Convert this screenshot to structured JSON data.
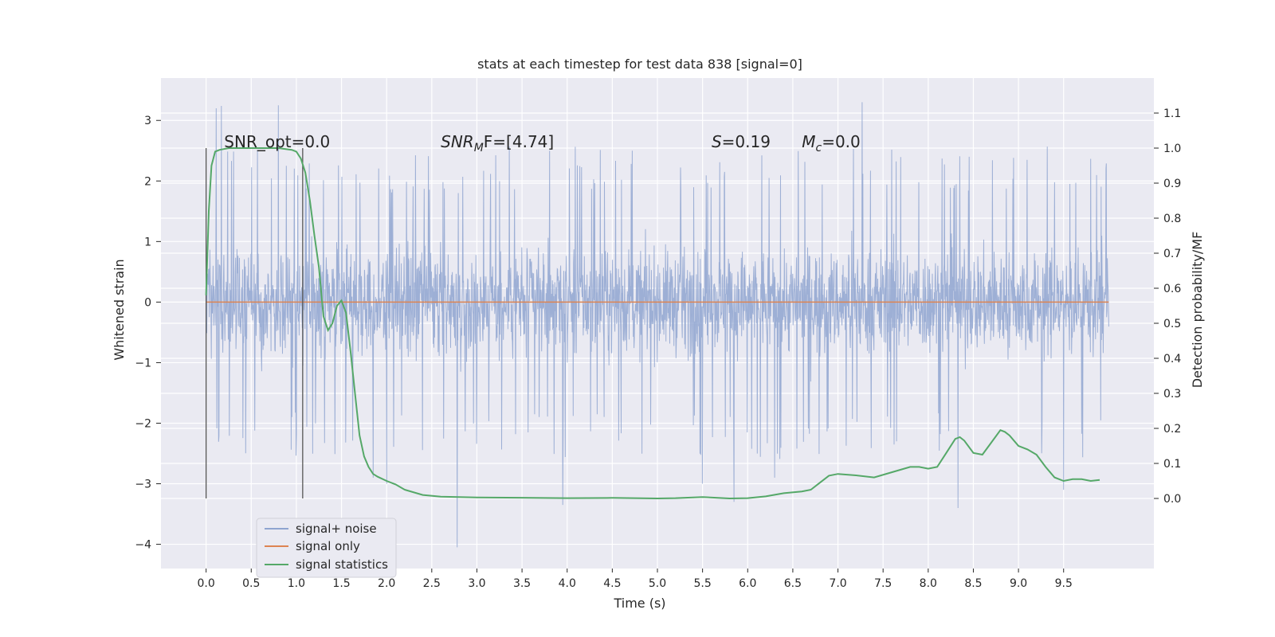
{
  "chart_data": {
    "type": "line",
    "title": "stats at each timestep for test data 838 [signal=0]",
    "xlabel": "Time (s)",
    "ylabel_left": "Whitened strain",
    "ylabel_right": "Detection probability/MF",
    "xlim": [
      -0.5,
      10.5
    ],
    "ylim_left": [
      -4.4,
      3.7
    ],
    "ylim_right": [
      -0.2,
      1.2
    ],
    "x_ticks": [
      "0.0",
      "0.5",
      "1.0",
      "1.5",
      "2.0",
      "2.5",
      "3.0",
      "3.5",
      "4.0",
      "4.5",
      "5.0",
      "5.5",
      "6.0",
      "6.5",
      "7.0",
      "7.5",
      "8.0",
      "8.5",
      "9.0",
      "9.5"
    ],
    "y_left_ticks": [
      "3",
      "2",
      "1",
      "0",
      "−1",
      "−2",
      "−3",
      "−4"
    ],
    "y_right_ticks": [
      "1.1",
      "1.0",
      "0.9",
      "0.8",
      "0.7",
      "0.6",
      "0.5",
      "0.4",
      "0.3",
      "0.2",
      "0.1",
      "0.0"
    ],
    "grid": true,
    "legend_position": "lower-left",
    "series": [
      {
        "name": "signal+ noise",
        "color": "#8fa5d0",
        "axis": "left",
        "noise_band": {
          "x_start": 0.0,
          "x_end": 10.0,
          "typical_range": [
            -1.2,
            1.3
          ],
          "extreme_range": [
            -4.05,
            3.3
          ]
        },
        "spikes": [
          [
            0.11,
            3.2
          ],
          [
            0.17,
            3.24
          ],
          [
            0.8,
            3.25
          ],
          [
            2.78,
            -4.05
          ],
          [
            3.95,
            -3.35
          ],
          [
            5.85,
            -3.3
          ],
          [
            7.27,
            3.3
          ],
          [
            8.33,
            -3.4
          ],
          [
            9.5,
            -3.1
          ],
          [
            2.0,
            -3.0
          ],
          [
            1.85,
            -2.9
          ],
          [
            5.5,
            -3.0
          ],
          [
            6.3,
            -2.9
          ]
        ]
      },
      {
        "name": "signal only",
        "color": "#dd8452",
        "axis": "left",
        "x": [
          0.0,
          10.0
        ],
        "y": [
          0.0,
          0.0
        ]
      },
      {
        "name": "signal statistics",
        "color": "#55a868",
        "axis": "right",
        "x": [
          0.0,
          0.03,
          0.06,
          0.1,
          0.15,
          0.25,
          0.4,
          0.6,
          0.8,
          0.95,
          1.0,
          1.05,
          1.1,
          1.15,
          1.2,
          1.25,
          1.3,
          1.35,
          1.4,
          1.45,
          1.5,
          1.55,
          1.6,
          1.65,
          1.7,
          1.75,
          1.8,
          1.85,
          1.9,
          2.0,
          2.1,
          2.2,
          2.4,
          2.6,
          2.8,
          3.0,
          3.5,
          4.0,
          4.5,
          5.0,
          5.2,
          5.5,
          5.8,
          6.0,
          6.2,
          6.4,
          6.6,
          6.7,
          6.8,
          6.9,
          7.0,
          7.2,
          7.4,
          7.6,
          7.8,
          7.9,
          8.0,
          8.1,
          8.2,
          8.3,
          8.35,
          8.4,
          8.5,
          8.6,
          8.7,
          8.8,
          8.85,
          8.9,
          9.0,
          9.1,
          9.2,
          9.3,
          9.4,
          9.5,
          9.6,
          9.7,
          9.8,
          9.9
        ],
        "y": [
          0.58,
          0.82,
          0.95,
          0.99,
          0.995,
          1.0,
          1.0,
          1.0,
          1.0,
          0.995,
          0.99,
          0.97,
          0.93,
          0.85,
          0.75,
          0.66,
          0.52,
          0.48,
          0.5,
          0.55,
          0.565,
          0.53,
          0.42,
          0.3,
          0.18,
          0.12,
          0.09,
          0.07,
          0.062,
          0.05,
          0.04,
          0.025,
          0.01,
          0.005,
          0.004,
          0.003,
          0.002,
          0.001,
          0.0015,
          0.0,
          0.001,
          0.004,
          0.0,
          0.001,
          0.006,
          0.015,
          0.02,
          0.025,
          0.045,
          0.065,
          0.07,
          0.066,
          0.06,
          0.075,
          0.09,
          0.09,
          0.085,
          0.09,
          0.13,
          0.17,
          0.175,
          0.165,
          0.13,
          0.125,
          0.16,
          0.195,
          0.19,
          0.18,
          0.15,
          0.14,
          0.125,
          0.09,
          0.06,
          0.05,
          0.055,
          0.055,
          0.05,
          0.053
        ]
      }
    ],
    "vlines": [
      {
        "x": 0.0
      },
      {
        "x": 1.07
      }
    ],
    "annotations": [
      {
        "text": "SNR_opt=0.0",
        "x": 0.2,
        "y_right": 1.0
      },
      {
        "base": "SNR",
        "sub": "M",
        "rest": "F=[4.74]",
        "x": 2.6,
        "y_right": 1.0
      },
      {
        "base": "S",
        "rest": "=0.19",
        "x": 5.6,
        "y_right": 1.0
      },
      {
        "base": "M",
        "sub": "c",
        "rest": "=0.0",
        "x": 6.6,
        "y_right": 1.0
      }
    ]
  }
}
